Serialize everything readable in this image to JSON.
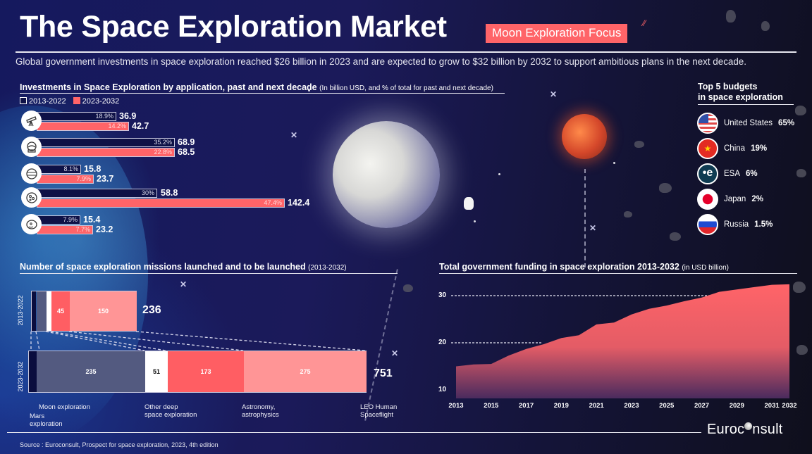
{
  "header": {
    "title": "The Space Exploration Market",
    "badge": "Moon Exploration Focus",
    "subtitle": "Global government investments in space exploration reached $26 billion in 2023 and are expected to grow to $32 billion by 2032 to support ambitious plans in the next decade."
  },
  "investments": {
    "title": "Investments in Space Exploration by application, past and next decade",
    "title_note": "(In billion USD, and % of total for past and next decade)",
    "legend": [
      {
        "label": "2013-2022",
        "color": "#0e1146"
      },
      {
        "label": "2023-2032",
        "color": "#ff6468"
      }
    ],
    "rows": [
      {
        "icon": "telescope-icon",
        "past_pct": "18.9%",
        "past_val": "36.9",
        "next_pct": "14.2%",
        "next_val": "42.7"
      },
      {
        "icon": "astronaut-helmet-icon",
        "past_pct": "35.2%",
        "past_val": "68.9",
        "next_pct": "22.8%",
        "next_val": "68.5"
      },
      {
        "icon": "planet-icon",
        "past_pct": "8.1%",
        "past_val": "15.8",
        "next_pct": "7.9%",
        "next_val": "23.7"
      },
      {
        "icon": "moon-icon",
        "past_pct": "30%",
        "past_val": "58.8",
        "next_pct": "47.4%",
        "next_val": "142.4"
      },
      {
        "icon": "mars-icon",
        "past_pct": "7.9%",
        "past_val": "15.4",
        "next_pct": "7.7%",
        "next_val": "23.2"
      }
    ]
  },
  "top5": {
    "title_line1": "Top 5 budgets",
    "title_line2": "in space exploration",
    "items": [
      {
        "name": "United States",
        "pct": "65%",
        "flag": "us-flag-icon"
      },
      {
        "name": "China",
        "pct": "19%",
        "flag": "china-flag-icon"
      },
      {
        "name": "ESA",
        "pct": "6%",
        "flag": "esa-logo-icon"
      },
      {
        "name": "Japan",
        "pct": "2%",
        "flag": "japan-flag-icon"
      },
      {
        "name": "Russia",
        "pct": "1.5%",
        "flag": "russia-flag-icon"
      }
    ]
  },
  "missions": {
    "title": "Number of space exploration missions launched and to be launched",
    "title_note": "(2013-2032)",
    "past": {
      "period": "2013-2022",
      "segments": [
        "",
        "",
        "",
        "45",
        "150"
      ],
      "total": "236"
    },
    "next": {
      "period": "2023-2032",
      "segments": [
        "",
        "235",
        "51",
        "173",
        "275"
      ],
      "total": "751"
    },
    "categories": [
      "Mars exploration",
      "Moon exploration",
      "Other deep space exploration",
      "Astronomy, astrophysics",
      "LEO Human Spaceflight"
    ],
    "labels": {
      "mars": "Mars\nexploration",
      "moon": "Moon exploration",
      "other": "Other deep\nspace exploration",
      "astro": "Astronomy,\nastrophysics",
      "leo": "LEO Human\nSpaceflight"
    }
  },
  "funding": {
    "title": "Total government funding in space exploration 2013-2032",
    "title_note": "(in USD billion)"
  },
  "chart_data": [
    {
      "type": "bar",
      "title": "Investments in Space Exploration by application, past and next decade",
      "subtitle": "(In billion USD, and % of total for past and next decade)",
      "categories": [
        "Astronomy / astrophysics (telescope)",
        "Human spaceflight (helmet)",
        "Other deep space (planet)",
        "Moon exploration",
        "Mars exploration"
      ],
      "series": [
        {
          "name": "2013-2022",
          "values": [
            36.9,
            68.9,
            15.8,
            58.8,
            15.4
          ],
          "pct": [
            "18.9%",
            "35.2%",
            "8.1%",
            "30%",
            "7.9%"
          ]
        },
        {
          "name": "2023-2032",
          "values": [
            42.7,
            68.5,
            23.7,
            142.4,
            23.2
          ],
          "pct": [
            "14.2%",
            "22.8%",
            "7.9%",
            "47.4%",
            "7.7%"
          ]
        }
      ],
      "orientation": "horizontal",
      "legend_position": "top-left"
    },
    {
      "type": "bar",
      "title": "Number of space exploration missions launched and to be launched (2013-2032)",
      "stacked": true,
      "orientation": "horizontal",
      "categories": [
        "2013-2022",
        "2023-2032"
      ],
      "series": [
        {
          "name": "Mars exploration",
          "values": [
            null,
            null
          ]
        },
        {
          "name": "Moon exploration",
          "values": [
            null,
            235
          ]
        },
        {
          "name": "Other deep space exploration",
          "values": [
            null,
            51
          ]
        },
        {
          "name": "Astronomy, astrophysics",
          "values": [
            45,
            173
          ]
        },
        {
          "name": "LEO Human Spaceflight",
          "values": [
            150,
            275
          ]
        }
      ],
      "totals": [
        236,
        751
      ]
    },
    {
      "type": "area",
      "title": "Total government funding in space exploration 2013-2032",
      "subtitle": "(in USD billion)",
      "x": [
        2013,
        2014,
        2015,
        2016,
        2017,
        2018,
        2019,
        2020,
        2021,
        2022,
        2023,
        2024,
        2025,
        2026,
        2027,
        2028,
        2029,
        2030,
        2031,
        2032
      ],
      "values": [
        15,
        15.4,
        15.5,
        17.3,
        18.7,
        19.7,
        21,
        21.6,
        23.9,
        24.3,
        26,
        27.2,
        27.9,
        28.8,
        29.6,
        30.8,
        31.3,
        31.8,
        32.3,
        32.4
      ],
      "xticks": [
        "2013",
        "2015",
        "2017",
        "2019",
        "2021",
        "2023",
        "2025",
        "2027",
        "2029",
        "2031",
        "2032"
      ],
      "yticks": [
        10,
        20,
        30
      ],
      "ylim": [
        9,
        33
      ],
      "grid": "dashed at 20 and 30",
      "color": "#ff6468"
    }
  ],
  "footer": {
    "source": "Source : Euroconsult, Prospect for space exploration, 2023, 4th edition",
    "logo_left": "Euroc",
    "logo_right": "nsult"
  }
}
